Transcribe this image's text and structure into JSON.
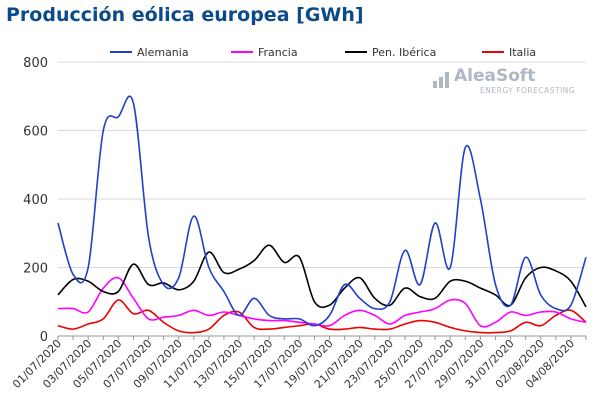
{
  "title": "Producción eólica europea [GWh]",
  "logo": {
    "name": "AleaSoft",
    "subtitle": "ENERGY FORECASTING"
  },
  "colors": {
    "title": "#0b4a8b",
    "grid": "#d9d9d9",
    "axis": "#333333"
  },
  "chart_data": {
    "type": "line",
    "title": "Producción eólica europea [GWh]",
    "xlabel": "",
    "ylabel": "",
    "ylim": [
      0,
      800
    ],
    "yticks": [
      0,
      200,
      400,
      600,
      800
    ],
    "grid": "horizontal",
    "legend": "top",
    "x": [
      "01/07/2020",
      "02/07/2020",
      "03/07/2020",
      "04/07/2020",
      "05/07/2020",
      "06/07/2020",
      "07/07/2020",
      "08/07/2020",
      "09/07/2020",
      "10/07/2020",
      "11/07/2020",
      "12/07/2020",
      "13/07/2020",
      "14/07/2020",
      "15/07/2020",
      "16/07/2020",
      "17/07/2020",
      "18/07/2020",
      "19/07/2020",
      "20/07/2020",
      "21/07/2020",
      "22/07/2020",
      "23/07/2020",
      "24/07/2020",
      "25/07/2020",
      "26/07/2020",
      "27/07/2020",
      "28/07/2020",
      "29/07/2020",
      "30/07/2020",
      "31/07/2020",
      "01/08/2020",
      "02/08/2020",
      "03/08/2020",
      "04/08/2020",
      "05/08/2020"
    ],
    "xtick_labels": [
      "01/07/2020",
      "03/07/2020",
      "05/07/2020",
      "07/07/2020",
      "09/07/2020",
      "11/07/2020",
      "13/07/2020",
      "15/07/2020",
      "17/07/2020",
      "19/07/2020",
      "21/07/2020",
      "23/07/2020",
      "25/07/2020",
      "27/07/2020",
      "29/07/2020",
      "31/07/2020",
      "02/08/2020",
      "04/08/2020"
    ],
    "series": [
      {
        "name": "Alemania",
        "color": "#1f3fce",
        "values": [
          330,
          180,
          200,
          600,
          640,
          680,
          290,
          150,
          170,
          350,
          200,
          130,
          60,
          110,
          60,
          50,
          50,
          30,
          60,
          150,
          110,
          80,
          100,
          250,
          150,
          330,
          200,
          550,
          400,
          150,
          90,
          230,
          120,
          80,
          90,
          230
        ]
      },
      {
        "name": "Francia",
        "color": "#ff00ff",
        "values": [
          80,
          80,
          70,
          140,
          170,
          110,
          50,
          55,
          60,
          75,
          60,
          70,
          60,
          50,
          45,
          45,
          40,
          35,
          30,
          60,
          75,
          60,
          35,
          60,
          70,
          80,
          105,
          95,
          30,
          40,
          70,
          60,
          70,
          70,
          50,
          40
        ]
      },
      {
        "name": "Pen. Ibérica",
        "color": "#000000",
        "values": [
          120,
          165,
          160,
          130,
          130,
          210,
          150,
          155,
          135,
          160,
          245,
          185,
          195,
          220,
          265,
          215,
          230,
          100,
          90,
          140,
          170,
          110,
          90,
          140,
          115,
          110,
          160,
          160,
          140,
          120,
          90,
          170,
          200,
          190,
          160,
          85
        ]
      },
      {
        "name": "Italia",
        "color": "#ee0000",
        "values": [
          30,
          20,
          35,
          50,
          105,
          65,
          75,
          40,
          15,
          10,
          20,
          60,
          70,
          25,
          20,
          25,
          30,
          35,
          20,
          20,
          25,
          20,
          20,
          35,
          45,
          40,
          25,
          15,
          10,
          10,
          15,
          40,
          30,
          60,
          75,
          40
        ]
      }
    ]
  }
}
